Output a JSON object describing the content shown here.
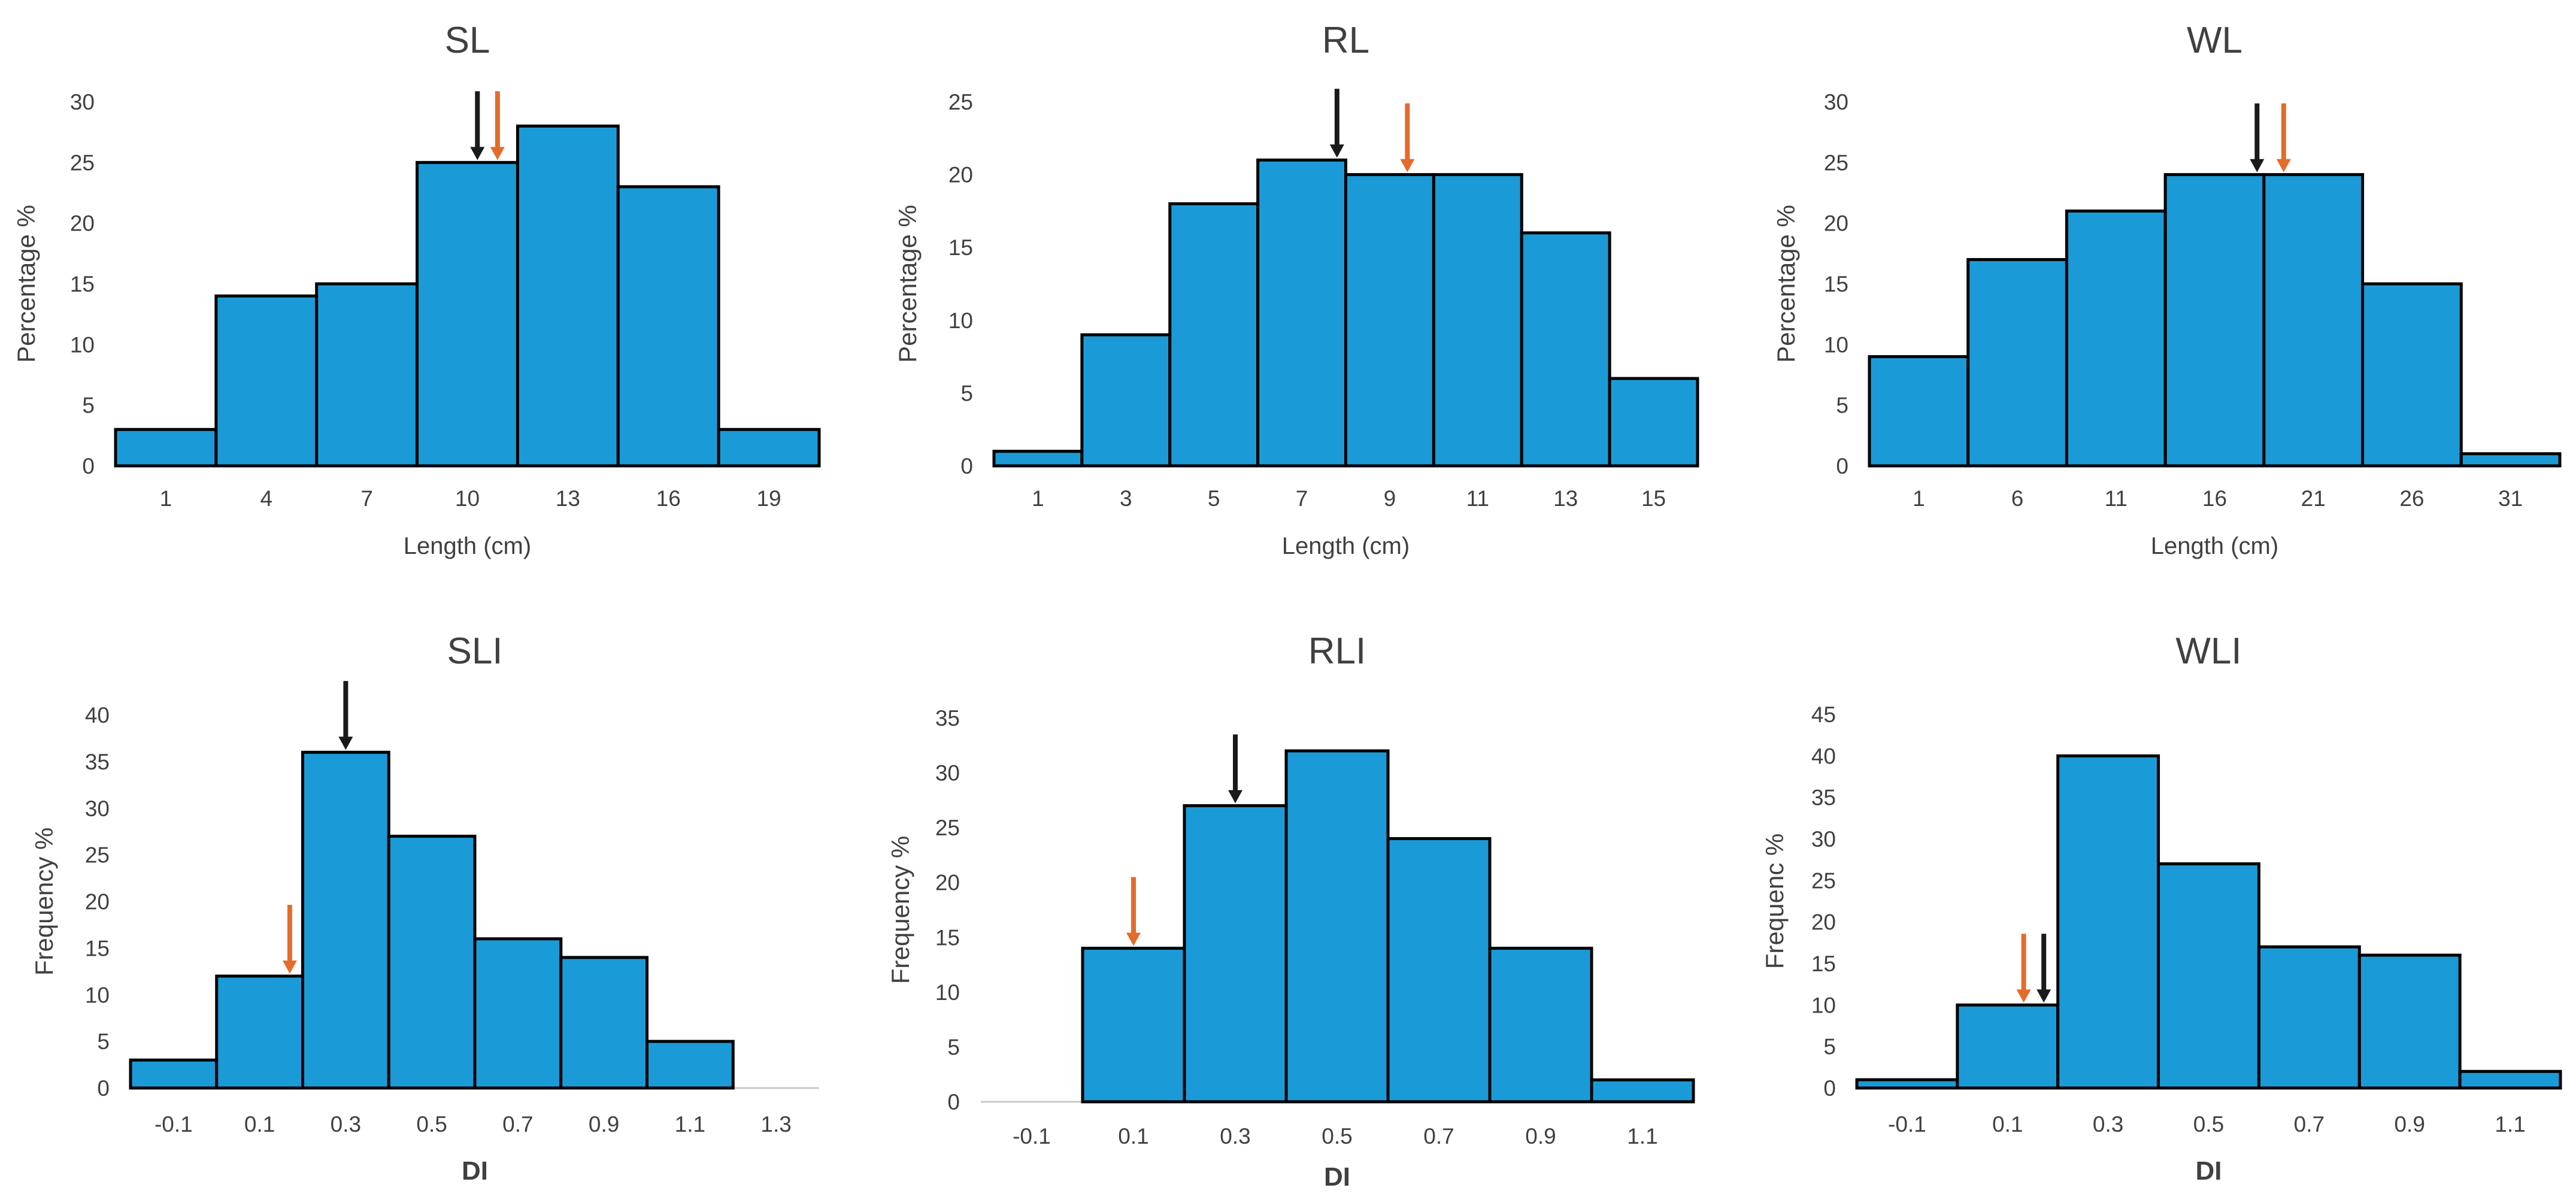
{
  "colors": {
    "bar_fill": "#1a9bd7",
    "bar_edge": "#000000",
    "axis_text": "#404040",
    "title_text": "#404040",
    "arrow_black": "#1a1a1a",
    "arrow_orange": "#e36c2a"
  },
  "chart_data": [
    {
      "type": "bar",
      "title": "SL",
      "xlabel": "Length (cm)",
      "ylabel": "Percentage %",
      "ylim": [
        0,
        30
      ],
      "yticks": [
        0,
        5,
        10,
        15,
        20,
        25,
        30
      ],
      "categories": [
        "1",
        "4",
        "7",
        "10",
        "13",
        "16",
        "19"
      ],
      "values": [
        3,
        14,
        15,
        25,
        28,
        23,
        3
      ],
      "arrows": [
        {
          "color": "black",
          "x": 3.6,
          "value": 25
        },
        {
          "color": "orange",
          "x": 3.8,
          "value": 25
        }
      ]
    },
    {
      "type": "bar",
      "title": "RL",
      "xlabel": "Length (cm)",
      "ylabel": "Percentage %",
      "ylim": [
        0,
        25
      ],
      "yticks": [
        0,
        5,
        10,
        15,
        20,
        25
      ],
      "categories": [
        "1",
        "3",
        "5",
        "7",
        "9",
        "11",
        "13",
        "15"
      ],
      "values": [
        1,
        9,
        18,
        21,
        20,
        20,
        16,
        6
      ],
      "arrows": [
        {
          "color": "black",
          "x": 3.9,
          "value": 21
        },
        {
          "color": "orange",
          "x": 4.7,
          "value": 20
        }
      ]
    },
    {
      "type": "bar",
      "title": "WL",
      "xlabel": "Length (cm)",
      "ylabel": "Percentage %",
      "ylim": [
        0,
        30
      ],
      "yticks": [
        0,
        5,
        10,
        15,
        20,
        25,
        30
      ],
      "categories": [
        "1",
        "6",
        "11",
        "16",
        "21",
        "26",
        "31"
      ],
      "values": [
        9,
        17,
        21,
        24,
        24,
        15,
        1
      ],
      "arrows": [
        {
          "color": "black",
          "x": 3.93,
          "value": 24
        },
        {
          "color": "orange",
          "x": 4.2,
          "value": 24
        }
      ]
    },
    {
      "type": "bar",
      "title": "SLI",
      "xlabel": "DI",
      "ylabel": "Frequency %",
      "ylim": [
        0,
        40
      ],
      "yticks": [
        0,
        5,
        10,
        15,
        20,
        25,
        30,
        35,
        40
      ],
      "categories": [
        "-0.1",
        "0.1",
        "0.3",
        "0.5",
        "0.7",
        "0.9",
        "1.1",
        "1.3"
      ],
      "values": [
        3,
        12,
        36,
        27,
        16,
        14,
        5,
        0
      ],
      "arrows": [
        {
          "color": "black",
          "x": 2.5,
          "value": 36
        },
        {
          "color": "orange",
          "x": 1.85,
          "value": 12
        }
      ]
    },
    {
      "type": "bar",
      "title": "RLI",
      "xlabel": "DI",
      "ylabel": "Frequency %",
      "ylim": [
        0,
        35
      ],
      "yticks": [
        0,
        5,
        10,
        15,
        20,
        25,
        30,
        35
      ],
      "categories": [
        "-0.1",
        "0.1",
        "0.3",
        "0.5",
        "0.7",
        "0.9",
        "1.1"
      ],
      "values": [
        0,
        14,
        27,
        32,
        24,
        14,
        2
      ],
      "arrows": [
        {
          "color": "black",
          "x": 2.5,
          "value": 27
        },
        {
          "color": "orange",
          "x": 1.5,
          "value": 14
        }
      ]
    },
    {
      "type": "bar",
      "title": "WLI",
      "xlabel": "DI",
      "ylabel": "Frequenc %",
      "ylim": [
        0,
        45
      ],
      "yticks": [
        0,
        5,
        10,
        15,
        20,
        25,
        30,
        35,
        40,
        45
      ],
      "categories": [
        "-0.1",
        "0.1",
        "0.3",
        "0.5",
        "0.7",
        "0.9",
        "1.1"
      ],
      "values": [
        1,
        10,
        40,
        27,
        17,
        16,
        2
      ],
      "arrows": [
        {
          "color": "orange",
          "x": 1.66,
          "value": 10
        },
        {
          "color": "black",
          "x": 1.86,
          "value": 10
        }
      ]
    }
  ]
}
